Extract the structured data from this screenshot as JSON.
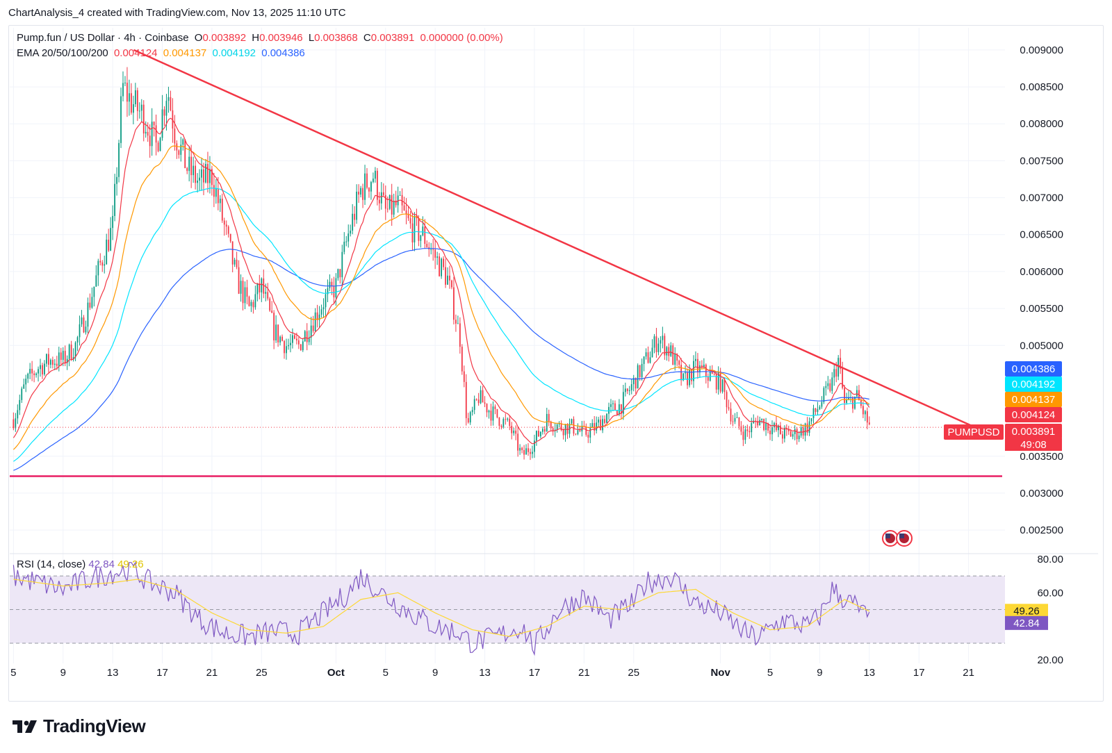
{
  "header": {
    "attribution": "ChartAnalysis_4 created with TradingView.com, Nov 13, 2025 11:10 UTC"
  },
  "legend": {
    "symbol": "Pump.fun / US Dollar · 4h · Coinbase",
    "o_label": "O",
    "o_value": "0.003892",
    "h_label": "H",
    "h_value": "0.003946",
    "l_label": "L",
    "l_value": "0.003868",
    "c_label": "C",
    "c_value": "0.003891",
    "change": "0.000000 (0.00%)",
    "ema_label": "EMA 20/50/100/200",
    "ema20": "0.004124",
    "ema50": "0.004137",
    "ema100": "0.004192",
    "ema200": "0.004386"
  },
  "rsi_legend": {
    "label": "RSI (14, close)",
    "rsi": "42.84",
    "rsi_ma": "49.26"
  },
  "footer": {
    "brand": "TradingView"
  },
  "colors": {
    "up": "#089981",
    "down": "#f23645",
    "ema20": "#f23645",
    "ema50": "#ff9800",
    "ema100": "#00e5ff",
    "ema200": "#2962ff",
    "trend": "#f23645",
    "support": "#e91e63",
    "rsi": "#7e57c2",
    "rsi_ma": "#fdd835",
    "rsi_band": "#ede7f6"
  },
  "chart_data": [
    {
      "type": "candlestick",
      "title": "Pump.fun / US Dollar · 4h · Coinbase",
      "ylim": [
        0.0022,
        0.0093
      ],
      "y_ticks": [
        "0.009000",
        "0.008500",
        "0.008000",
        "0.007500",
        "0.007000",
        "0.006500",
        "0.006000",
        "0.005500",
        "0.005000",
        "0.003500",
        "0.003000",
        "0.002500"
      ],
      "y_tick_values": [
        0.009,
        0.0085,
        0.008,
        0.0075,
        0.007,
        0.0065,
        0.006,
        0.0055,
        0.005,
        0.0035,
        0.003,
        0.0025
      ],
      "x_ticks": [
        "5",
        "9",
        "13",
        "17",
        "21",
        "25",
        "Oct",
        "5",
        "9",
        "13",
        "17",
        "21",
        "25",
        "Nov",
        "5",
        "9",
        "13",
        "17",
        "21"
      ],
      "x_tick_days": [
        0,
        4,
        8,
        12,
        16,
        20,
        26,
        30,
        34,
        38,
        42,
        46,
        50,
        57,
        61,
        65,
        69,
        73,
        77
      ],
      "day_range": [
        -0.3,
        79.6
      ],
      "price_path": [
        [
          0,
          0.004
        ],
        [
          1,
          0.0045
        ],
        [
          2,
          0.0047
        ],
        [
          3,
          0.0048
        ],
        [
          4,
          0.0048
        ],
        [
          5,
          0.005
        ],
        [
          6,
          0.0055
        ],
        [
          7,
          0.0061
        ],
        [
          8,
          0.0066
        ],
        [
          8.8,
          0.0085
        ],
        [
          9.5,
          0.0083
        ],
        [
          10.5,
          0.0081
        ],
        [
          11.5,
          0.0077
        ],
        [
          12.4,
          0.0085
        ],
        [
          13,
          0.0079
        ],
        [
          14,
          0.0074
        ],
        [
          15,
          0.0072
        ],
        [
          16,
          0.0073
        ],
        [
          17,
          0.0066
        ],
        [
          18,
          0.0059
        ],
        [
          19,
          0.0055
        ],
        [
          20,
          0.0058
        ],
        [
          21,
          0.0052
        ],
        [
          22,
          0.005
        ],
        [
          23,
          0.005
        ],
        [
          24,
          0.0053
        ],
        [
          25,
          0.0056
        ],
        [
          26,
          0.0058
        ],
        [
          27,
          0.0065
        ],
        [
          28,
          0.0071
        ],
        [
          29,
          0.0073
        ],
        [
          30,
          0.0068
        ],
        [
          31,
          0.0069
        ],
        [
          32,
          0.0066
        ],
        [
          33,
          0.0065
        ],
        [
          34,
          0.0062
        ],
        [
          35,
          0.0059
        ],
        [
          36,
          0.0051
        ],
        [
          36.6,
          0.0039
        ],
        [
          37.5,
          0.0043
        ],
        [
          38.5,
          0.0041
        ],
        [
          40,
          0.0039
        ],
        [
          41,
          0.0035
        ],
        [
          42,
          0.0037
        ],
        [
          43,
          0.004
        ],
        [
          44,
          0.0039
        ],
        [
          45,
          0.0039
        ],
        [
          46,
          0.0038
        ],
        [
          47,
          0.0039
        ],
        [
          48,
          0.0041
        ],
        [
          49,
          0.0042
        ],
        [
          50,
          0.0045
        ],
        [
          51,
          0.0048
        ],
        [
          52,
          0.0051
        ],
        [
          53,
          0.0049
        ],
        [
          54,
          0.0045
        ],
        [
          55,
          0.0047
        ],
        [
          56,
          0.0046
        ],
        [
          57,
          0.0045
        ],
        [
          58,
          0.004
        ],
        [
          59,
          0.0038
        ],
        [
          60,
          0.004
        ],
        [
          61,
          0.0039
        ],
        [
          62,
          0.0038
        ],
        [
          63,
          0.0038
        ],
        [
          64,
          0.0039
        ],
        [
          65,
          0.0042
        ],
        [
          66,
          0.0045
        ],
        [
          66.5,
          0.0048
        ],
        [
          67,
          0.0042
        ],
        [
          68,
          0.0043
        ],
        [
          69,
          0.0039
        ]
      ],
      "annotations": {
        "trendline_start": [
          9.7,
          0.009
        ],
        "trendline_end": [
          79.4,
          0.00375
        ],
        "support_level": 0.00323,
        "last_close": 0.003891
      },
      "price_labels": [
        {
          "text": "0.004386",
          "value": 0.004386,
          "color": "#2962ff"
        },
        {
          "text": "0.004192",
          "value": 0.004192,
          "color": "#00e5ff"
        },
        {
          "text": "0.004137",
          "value": 0.004137,
          "color": "#ff9800"
        },
        {
          "text": "0.004124",
          "value": 0.004124,
          "color": "#f23645"
        },
        {
          "text": "0.003891",
          "value": 0.003891,
          "color": "#f23645"
        }
      ],
      "symbol_tag": "PUMPUSD",
      "countdown": "49:08"
    },
    {
      "type": "line",
      "title": "RSI (14, close)",
      "ylim": [
        18,
        82
      ],
      "y_ticks": [
        "80.00",
        "60.00",
        "20.00"
      ],
      "y_tick_values": [
        80,
        60,
        20
      ],
      "band": [
        30,
        70
      ],
      "midline": 50,
      "rsi_path": [
        [
          0,
          70
        ],
        [
          2,
          66
        ],
        [
          4,
          62
        ],
        [
          6,
          68
        ],
        [
          8,
          72
        ],
        [
          9.5,
          74
        ],
        [
          11,
          66
        ],
        [
          13,
          60
        ],
        [
          15,
          44
        ],
        [
          17,
          36
        ],
        [
          19,
          34
        ],
        [
          21,
          37
        ],
        [
          23,
          36
        ],
        [
          25,
          48
        ],
        [
          27,
          60
        ],
        [
          28,
          70
        ],
        [
          30,
          58
        ],
        [
          32,
          48
        ],
        [
          34,
          40
        ],
        [
          36,
          36
        ],
        [
          37,
          30
        ],
        [
          39,
          34
        ],
        [
          41,
          40
        ],
        [
          42,
          28
        ],
        [
          44,
          50
        ],
        [
          46,
          58
        ],
        [
          48,
          44
        ],
        [
          50,
          54
        ],
        [
          51,
          66
        ],
        [
          53,
          70
        ],
        [
          55,
          54
        ],
        [
          57,
          48
        ],
        [
          59,
          36
        ],
        [
          60,
          33
        ],
        [
          62,
          44
        ],
        [
          64,
          40
        ],
        [
          65,
          46
        ],
        [
          66,
          62
        ],
        [
          67,
          56
        ],
        [
          68,
          52
        ],
        [
          69,
          43
        ]
      ],
      "rsi_ma_path": [
        [
          0,
          68
        ],
        [
          4,
          64
        ],
        [
          8,
          66
        ],
        [
          10,
          68
        ],
        [
          13,
          62
        ],
        [
          16,
          48
        ],
        [
          19,
          38
        ],
        [
          22,
          36
        ],
        [
          25,
          40
        ],
        [
          28,
          56
        ],
        [
          31,
          60
        ],
        [
          34,
          48
        ],
        [
          37,
          38
        ],
        [
          40,
          34
        ],
        [
          43,
          40
        ],
        [
          46,
          52
        ],
        [
          49,
          50
        ],
        [
          52,
          60
        ],
        [
          55,
          62
        ],
        [
          58,
          48
        ],
        [
          61,
          38
        ],
        [
          64,
          40
        ],
        [
          67,
          56
        ],
        [
          69,
          49
        ]
      ],
      "rsi_label": "42.84",
      "rsi_value": 42.84,
      "rsi_ma_label": "49.26",
      "rsi_ma_value": 49.26
    }
  ]
}
